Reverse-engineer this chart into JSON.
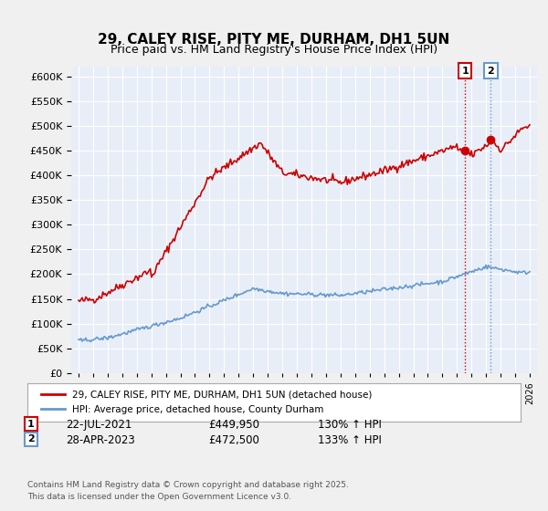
{
  "title": "29, CALEY RISE, PITY ME, DURHAM, DH1 5UN",
  "subtitle": "Price paid vs. HM Land Registry's House Price Index (HPI)",
  "red_label": "29, CALEY RISE, PITY ME, DURHAM, DH1 5UN (detached house)",
  "blue_label": "HPI: Average price, detached house, County Durham",
  "footer": "Contains HM Land Registry data © Crown copyright and database right 2025.\nThis data is licensed under the Open Government Licence v3.0.",
  "annotation1": {
    "num": "1",
    "date": "22-JUL-2021",
    "price": "£449,950",
    "hpi": "130% ↑ HPI",
    "x": 2021.55
  },
  "annotation2": {
    "num": "2",
    "date": "28-APR-2023",
    "price": "£472,500",
    "hpi": "133% ↑ HPI",
    "x": 2023.32
  },
  "ylim": [
    0,
    620000
  ],
  "xlim": [
    1994.5,
    2026.5
  ],
  "background_color": "#f0f4ff",
  "plot_bg": "#e8eef8",
  "red_color": "#cc0000",
  "blue_color": "#6699cc",
  "vline_color": "#cc0000",
  "vline_style": ":",
  "grid_color": "#ffffff",
  "red_dot_color": "#cc0000",
  "yticks": [
    0,
    50000,
    100000,
    150000,
    200000,
    250000,
    300000,
    350000,
    400000,
    450000,
    500000,
    550000,
    600000
  ]
}
